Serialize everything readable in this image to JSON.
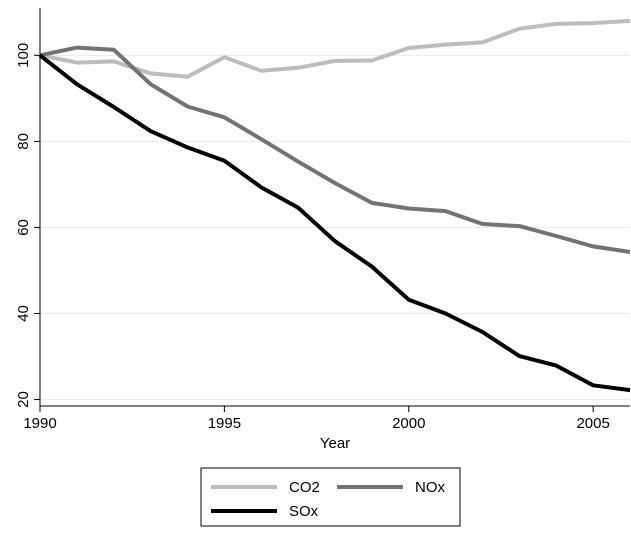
{
  "chart_data": {
    "type": "line",
    "xlabel": "Year",
    "ylabel": "",
    "xlim": [
      1990,
      2006
    ],
    "ylim": [
      18.5,
      111
    ],
    "x_ticks": [
      1990,
      1995,
      2000,
      2005
    ],
    "y_ticks": [
      20,
      40,
      60,
      80,
      100
    ],
    "grid": true,
    "legend_position": "bottom",
    "x": [
      1990,
      1991,
      1992,
      1993,
      1994,
      1995,
      1996,
      1997,
      1998,
      1999,
      2000,
      2001,
      2002,
      2003,
      2004,
      2005,
      2006
    ],
    "series": [
      {
        "name": "CO2",
        "color": "#bdbdbd",
        "values": [
          100,
          98.3,
          98.6,
          95.8,
          95.0,
          99.6,
          96.4,
          97.1,
          98.7,
          98.8,
          101.7,
          102.5,
          103.0,
          106.2,
          107.3,
          107.5,
          108.0
        ]
      },
      {
        "name": "NOx",
        "color": "#737373",
        "values": [
          100,
          101.8,
          101.3,
          93.3,
          88.1,
          85.6,
          80.5,
          75.3,
          70.3,
          65.7,
          64.4,
          63.8,
          60.8,
          60.3,
          58.0,
          55.6,
          54.3
        ]
      },
      {
        "name": "SOx",
        "color": "#000000",
        "values": [
          100,
          93.3,
          88.0,
          82.4,
          78.6,
          75.5,
          69.3,
          64.6,
          56.8,
          50.9,
          43.2,
          40.0,
          35.7,
          30.1,
          27.9,
          23.3,
          22.2
        ]
      }
    ]
  }
}
